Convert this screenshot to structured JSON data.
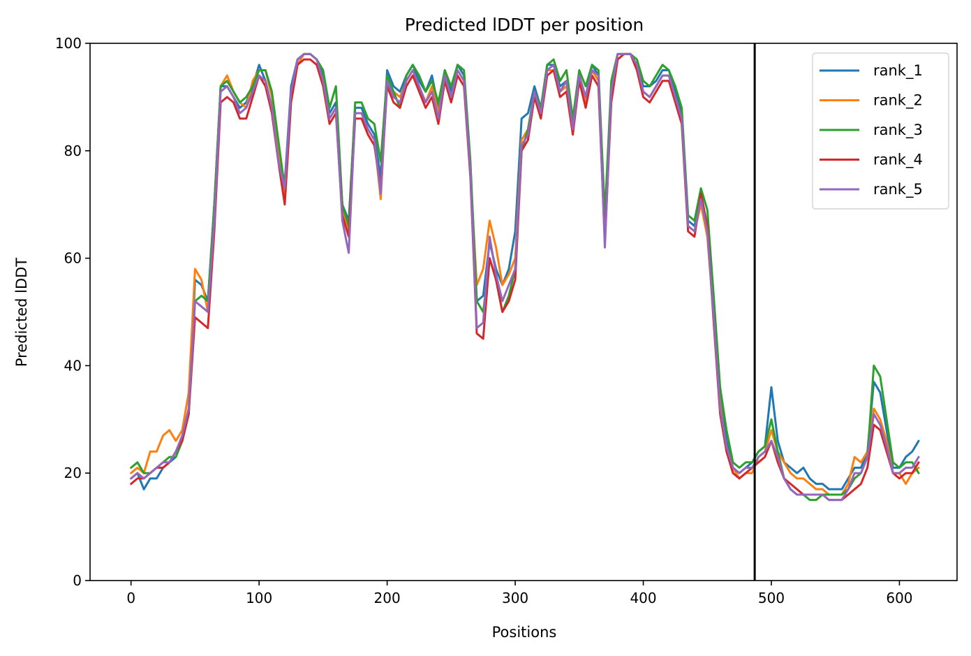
{
  "chart_data": {
    "type": "line",
    "title": "Predicted lDDT per position",
    "xlabel": "Positions",
    "ylabel": "Predicted lDDT",
    "xlim": [
      -32,
      645
    ],
    "ylim": [
      0,
      100
    ],
    "xticks": [
      0,
      100,
      200,
      300,
      400,
      500,
      600
    ],
    "yticks": [
      0,
      20,
      40,
      60,
      80,
      100
    ],
    "grid": false,
    "legend_position": "top-right",
    "vline": {
      "x": 487,
      "color": "#000000"
    },
    "x": [
      0,
      5,
      10,
      15,
      20,
      25,
      30,
      35,
      40,
      45,
      50,
      55,
      60,
      65,
      70,
      75,
      80,
      85,
      90,
      95,
      100,
      105,
      110,
      115,
      120,
      125,
      130,
      135,
      140,
      145,
      150,
      155,
      160,
      165,
      170,
      175,
      180,
      185,
      190,
      195,
      200,
      205,
      210,
      215,
      220,
      225,
      230,
      235,
      240,
      245,
      250,
      255,
      260,
      265,
      270,
      275,
      280,
      285,
      290,
      295,
      300,
      305,
      310,
      315,
      320,
      325,
      330,
      335,
      340,
      345,
      350,
      355,
      360,
      365,
      370,
      375,
      380,
      385,
      390,
      395,
      400,
      405,
      410,
      415,
      420,
      425,
      430,
      435,
      440,
      445,
      450,
      455,
      460,
      465,
      470,
      475,
      480,
      485,
      490,
      495,
      500,
      505,
      510,
      515,
      520,
      525,
      530,
      535,
      540,
      545,
      550,
      555,
      560,
      565,
      570,
      575,
      580,
      585,
      590,
      595,
      600,
      605,
      610,
      615
    ],
    "series": [
      {
        "name": "rank_1",
        "color": "#1f77b4",
        "values": [
          19,
          20,
          17,
          19,
          19,
          21,
          22,
          23,
          26,
          31,
          56,
          55,
          52,
          70,
          92,
          92,
          90,
          88,
          89,
          92,
          96,
          93,
          88,
          79,
          74,
          92,
          97,
          98,
          98,
          97,
          94,
          87,
          89,
          70,
          67,
          88,
          88,
          85,
          83,
          75,
          95,
          92,
          91,
          94,
          96,
          93,
          91,
          94,
          88,
          95,
          91,
          96,
          94,
          77,
          52,
          53,
          63,
          58,
          55,
          58,
          65,
          86,
          87,
          92,
          88,
          96,
          96,
          92,
          93,
          85,
          94,
          90,
          96,
          94,
          66,
          92,
          98,
          98,
          98,
          96,
          92,
          92,
          93,
          95,
          95,
          91,
          87,
          67,
          66,
          72,
          66,
          50,
          34,
          26,
          21,
          20,
          21,
          22,
          24,
          25,
          36,
          26,
          22,
          21,
          20,
          21,
          19,
          18,
          18,
          17,
          17,
          17,
          19,
          21,
          21,
          24,
          37,
          35,
          28,
          21,
          21,
          23,
          24,
          26
        ]
      },
      {
        "name": "rank_2",
        "color": "#ff7f0e",
        "values": [
          20,
          21,
          20,
          24,
          24,
          27,
          28,
          26,
          28,
          35,
          58,
          56,
          50,
          69,
          92,
          94,
          91,
          89,
          88,
          93,
          95,
          95,
          90,
          80,
          72,
          90,
          96,
          98,
          98,
          97,
          93,
          86,
          88,
          69,
          65,
          87,
          87,
          84,
          82,
          71,
          93,
          91,
          90,
          93,
          95,
          92,
          89,
          92,
          87,
          94,
          90,
          95,
          93,
          76,
          55,
          58,
          67,
          62,
          55,
          57,
          60,
          82,
          84,
          91,
          87,
          95,
          95,
          91,
          92,
          84,
          94,
          89,
          95,
          93,
          64,
          90,
          97,
          98,
          98,
          96,
          91,
          90,
          92,
          94,
          94,
          90,
          86,
          66,
          65,
          70,
          64,
          49,
          33,
          24,
          21,
          19,
          20,
          20,
          23,
          24,
          28,
          24,
          22,
          20,
          19,
          19,
          18,
          17,
          17,
          16,
          16,
          16,
          18,
          23,
          22,
          24,
          32,
          30,
          26,
          20,
          20,
          18,
          20,
          21
        ]
      },
      {
        "name": "rank_3",
        "color": "#2ca02c",
        "values": [
          21,
          22,
          20,
          20,
          21,
          22,
          23,
          23,
          26,
          31,
          52,
          53,
          52,
          70,
          92,
          93,
          91,
          89,
          90,
          92,
          95,
          95,
          91,
          82,
          73,
          90,
          97,
          98,
          98,
          97,
          95,
          88,
          92,
          70,
          66,
          89,
          89,
          86,
          85,
          78,
          94,
          91,
          88,
          94,
          96,
          94,
          91,
          93,
          89,
          95,
          92,
          96,
          95,
          78,
          52,
          50,
          60,
          56,
          50,
          53,
          58,
          80,
          84,
          91,
          88,
          96,
          97,
          93,
          95,
          86,
          95,
          92,
          96,
          95,
          68,
          93,
          98,
          98,
          98,
          97,
          93,
          92,
          94,
          96,
          95,
          92,
          88,
          68,
          67,
          73,
          69,
          53,
          36,
          28,
          22,
          21,
          22,
          22,
          24,
          25,
          30,
          24,
          19,
          17,
          16,
          16,
          15,
          15,
          16,
          16,
          16,
          16,
          17,
          19,
          20,
          23,
          40,
          38,
          30,
          22,
          21,
          22,
          22,
          20
        ]
      },
      {
        "name": "rank_4",
        "color": "#d62728",
        "values": [
          18,
          19,
          19,
          20,
          21,
          21,
          22,
          24,
          26,
          31,
          49,
          48,
          47,
          65,
          89,
          90,
          89,
          86,
          86,
          90,
          94,
          92,
          87,
          78,
          70,
          89,
          96,
          97,
          97,
          96,
          92,
          85,
          87,
          68,
          64,
          86,
          86,
          83,
          81,
          73,
          92,
          89,
          88,
          92,
          94,
          91,
          88,
          90,
          85,
          93,
          89,
          94,
          92,
          75,
          46,
          45,
          60,
          56,
          50,
          52,
          56,
          80,
          82,
          90,
          86,
          94,
          95,
          90,
          91,
          83,
          93,
          88,
          94,
          92,
          63,
          89,
          97,
          98,
          98,
          95,
          90,
          89,
          91,
          93,
          93,
          89,
          85,
          65,
          64,
          72,
          66,
          48,
          31,
          24,
          20,
          19,
          20,
          21,
          22,
          23,
          26,
          22,
          19,
          18,
          17,
          16,
          16,
          16,
          16,
          15,
          15,
          15,
          16,
          17,
          18,
          21,
          29,
          28,
          24,
          20,
          19,
          20,
          20,
          22
        ]
      },
      {
        "name": "rank_5",
        "color": "#9467bd",
        "values": [
          19,
          20,
          19,
          20,
          21,
          22,
          22,
          24,
          27,
          32,
          52,
          51,
          50,
          67,
          91,
          92,
          90,
          87,
          88,
          91,
          94,
          93,
          88,
          78,
          73,
          91,
          97,
          98,
          98,
          97,
          93,
          86,
          88,
          67,
          61,
          87,
          87,
          84,
          82,
          72,
          93,
          90,
          89,
          93,
          95,
          92,
          89,
          91,
          86,
          94,
          90,
          95,
          93,
          76,
          47,
          48,
          64,
          57,
          52,
          55,
          58,
          81,
          83,
          91,
          87,
          95,
          96,
          91,
          93,
          84,
          94,
          90,
          95,
          94,
          62,
          91,
          98,
          98,
          98,
          96,
          91,
          90,
          92,
          94,
          94,
          90,
          86,
          66,
          65,
          71,
          65,
          49,
          32,
          25,
          21,
          20,
          21,
          21,
          23,
          24,
          26,
          23,
          19,
          17,
          16,
          16,
          16,
          16,
          16,
          15,
          15,
          15,
          17,
          20,
          20,
          23,
          31,
          29,
          25,
          20,
          20,
          21,
          21,
          23
        ]
      }
    ]
  }
}
